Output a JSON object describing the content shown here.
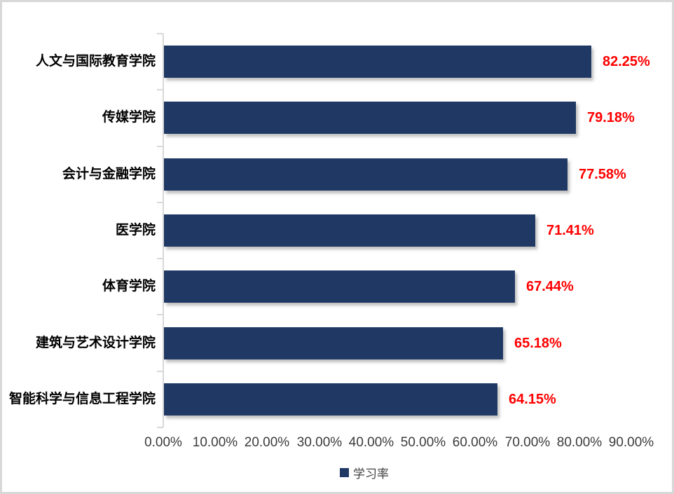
{
  "chart_data": {
    "type": "bar",
    "orientation": "horizontal",
    "title": "",
    "categories": [
      "人文与国际教育学院",
      "传媒学院",
      "会计与金融学院",
      "医学院",
      "体育学院",
      "建筑与艺术设计学院",
      "智能科学与信息工程学院"
    ],
    "values": [
      82.25,
      79.18,
      77.58,
      71.41,
      67.44,
      65.18,
      64.15
    ],
    "value_labels": [
      "82.25%",
      "79.18%",
      "77.58%",
      "71.41%",
      "67.44%",
      "65.18%",
      "64.15%"
    ],
    "series_name": "学习率",
    "x_tick_labels": [
      "0.00%",
      "10.00%",
      "20.00%",
      "30.00%",
      "40.00%",
      "50.00%",
      "60.00%",
      "70.00%",
      "80.00%",
      "90.00%"
    ],
    "xlim": [
      0,
      90
    ],
    "x_tick_step": 10,
    "grid": false,
    "legend": {
      "label": "学习率",
      "position": "bottom"
    },
    "colors": {
      "bar": "#1F3864",
      "value_label": "#FF0000",
      "axis_line": "#D9D9D9",
      "category_label": "#000000",
      "x_tick_label": "#3B3B3B",
      "legend_label": "#404040",
      "background": "#FFFFFF",
      "frame_border": "#D8D8D8"
    }
  }
}
